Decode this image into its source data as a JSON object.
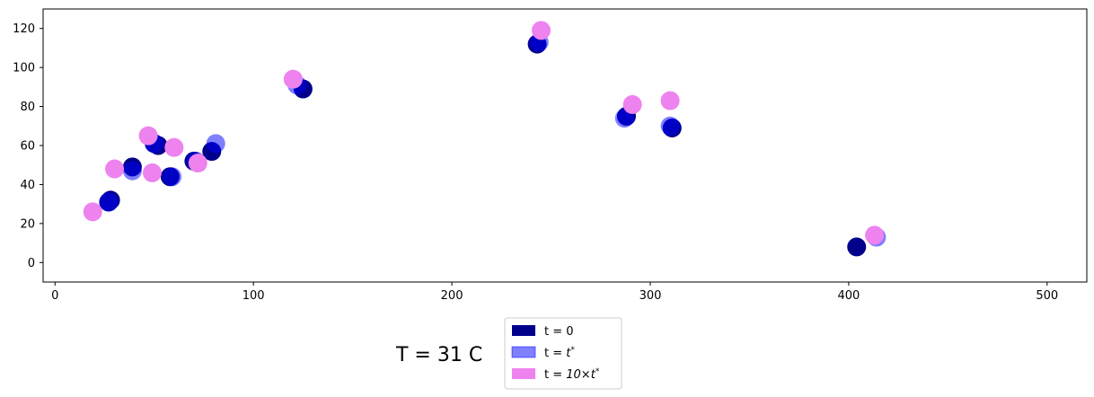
{
  "caption": "T = 31 C",
  "chart_data": {
    "type": "scatter",
    "xlim": [
      -6,
      520
    ],
    "ylim": [
      -10,
      130
    ],
    "xticks": [
      0,
      100,
      200,
      300,
      400,
      500
    ],
    "yticks": [
      0,
      20,
      40,
      60,
      80,
      100,
      120
    ],
    "grid": false,
    "legend_position": "below-center",
    "series": [
      {
        "label": "t = 0",
        "color": "#00008b",
        "opacity": 1.0,
        "points": [
          {
            "x": 27,
            "y": 31
          },
          {
            "x": 28,
            "y": 32
          },
          {
            "x": 39,
            "y": 49
          },
          {
            "x": 50,
            "y": 61
          },
          {
            "x": 52,
            "y": 60
          },
          {
            "x": 58,
            "y": 44
          },
          {
            "x": 70,
            "y": 52
          },
          {
            "x": 79,
            "y": 57
          },
          {
            "x": 125,
            "y": 89
          },
          {
            "x": 243,
            "y": 112
          },
          {
            "x": 288,
            "y": 75
          },
          {
            "x": 311,
            "y": 69
          },
          {
            "x": 404,
            "y": 8
          }
        ]
      },
      {
        "label": "t = t*",
        "color": "#0000ff",
        "opacity": 0.5,
        "points": [
          {
            "x": 27,
            "y": 31
          },
          {
            "x": 39,
            "y": 47
          },
          {
            "x": 50,
            "y": 61
          },
          {
            "x": 59,
            "y": 44
          },
          {
            "x": 71,
            "y": 52
          },
          {
            "x": 81,
            "y": 61
          },
          {
            "x": 122,
            "y": 91
          },
          {
            "x": 244,
            "y": 113
          },
          {
            "x": 287,
            "y": 74
          },
          {
            "x": 310,
            "y": 70
          },
          {
            "x": 414,
            "y": 13
          }
        ]
      },
      {
        "label": "t = 10×t*",
        "color": "#ee82ee",
        "opacity": 1.0,
        "points": [
          {
            "x": 19,
            "y": 26
          },
          {
            "x": 30,
            "y": 48
          },
          {
            "x": 47,
            "y": 65
          },
          {
            "x": 49,
            "y": 46
          },
          {
            "x": 60,
            "y": 59
          },
          {
            "x": 72,
            "y": 51
          },
          {
            "x": 120,
            "y": 94
          },
          {
            "x": 245,
            "y": 119
          },
          {
            "x": 291,
            "y": 81
          },
          {
            "x": 310,
            "y": 83
          },
          {
            "x": 413,
            "y": 14
          }
        ]
      }
    ]
  },
  "legend": {
    "items": [
      {
        "prefix": "t = ",
        "value": "0",
        "color": "#00008b",
        "opacity": 1.0
      },
      {
        "prefix": "t = ",
        "value": "t",
        "sup": "*",
        "color": "#0000ff",
        "opacity": 0.5
      },
      {
        "prefix": "t = ",
        "value": "10×t",
        "sup": "*",
        "color": "#ee82ee",
        "opacity": 1.0
      }
    ]
  }
}
